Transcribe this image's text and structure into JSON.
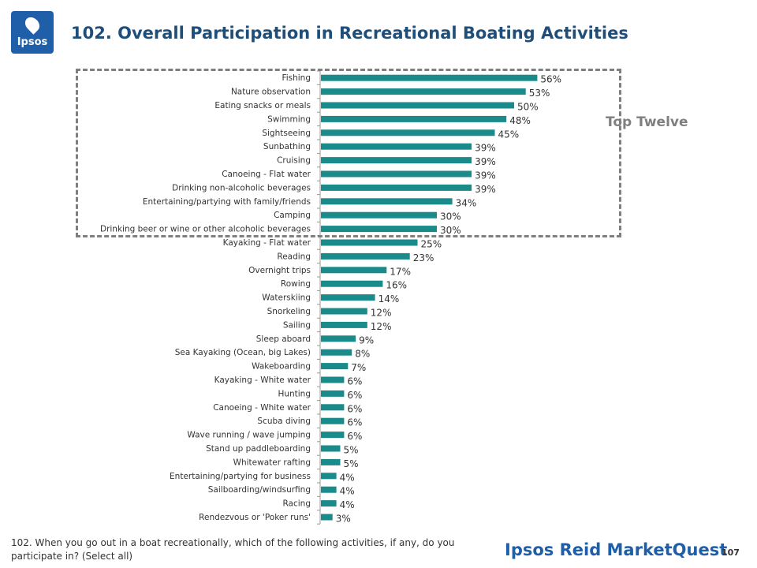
{
  "header": {
    "logo_text": "Ipsos",
    "title": "102. Overall Participation in Recreational Boating Activities"
  },
  "callout": "Top Twelve",
  "footnote": "102. When you go out in a boat recreationally, which of the following activities, if any, do you participate in? (Select all)",
  "brand": "Ipsos Reid MarketQuest",
  "page_number": "107",
  "colors": {
    "bar": "#1a8a8a",
    "title": "#1f4e79",
    "brand": "#1f5ea8",
    "callout": "#7f7f7f"
  },
  "chart_data": {
    "type": "bar",
    "orientation": "horizontal",
    "title": "",
    "xlabel": "",
    "ylabel": "",
    "value_suffix": "%",
    "xlim": [
      0,
      100
    ],
    "categories": [
      "Fishing",
      "Nature observation",
      "Eating snacks or meals",
      "Swimming",
      "Sightseeing",
      "Sunbathing",
      "Cruising",
      "Canoeing - Flat water",
      "Drinking non-alcoholic beverages",
      "Entertaining/partying with family/friends",
      "Camping",
      "Drinking beer or wine or other alcoholic beverages",
      "Kayaking - Flat water",
      "Reading",
      "Overnight trips",
      "Rowing",
      "Waterskiing",
      "Snorkeling",
      "Sailing",
      "Sleep aboard",
      "Sea Kayaking (Ocean, big Lakes)",
      "Wakeboarding",
      "Kayaking - White water",
      "Hunting",
      "Canoeing - White water",
      "Scuba diving",
      "Wave running / wave jumping",
      "Stand up paddleboarding",
      "Whitewater rafting",
      "Entertaining/partying for business",
      "Sailboarding/windsurfing",
      "Racing",
      "Rendezvous or 'Poker runs'"
    ],
    "values": [
      56,
      53,
      50,
      48,
      45,
      39,
      39,
      39,
      39,
      34,
      30,
      30,
      25,
      23,
      17,
      16,
      14,
      12,
      12,
      9,
      8,
      7,
      6,
      6,
      6,
      6,
      6,
      5,
      5,
      4,
      4,
      4,
      3
    ]
  }
}
